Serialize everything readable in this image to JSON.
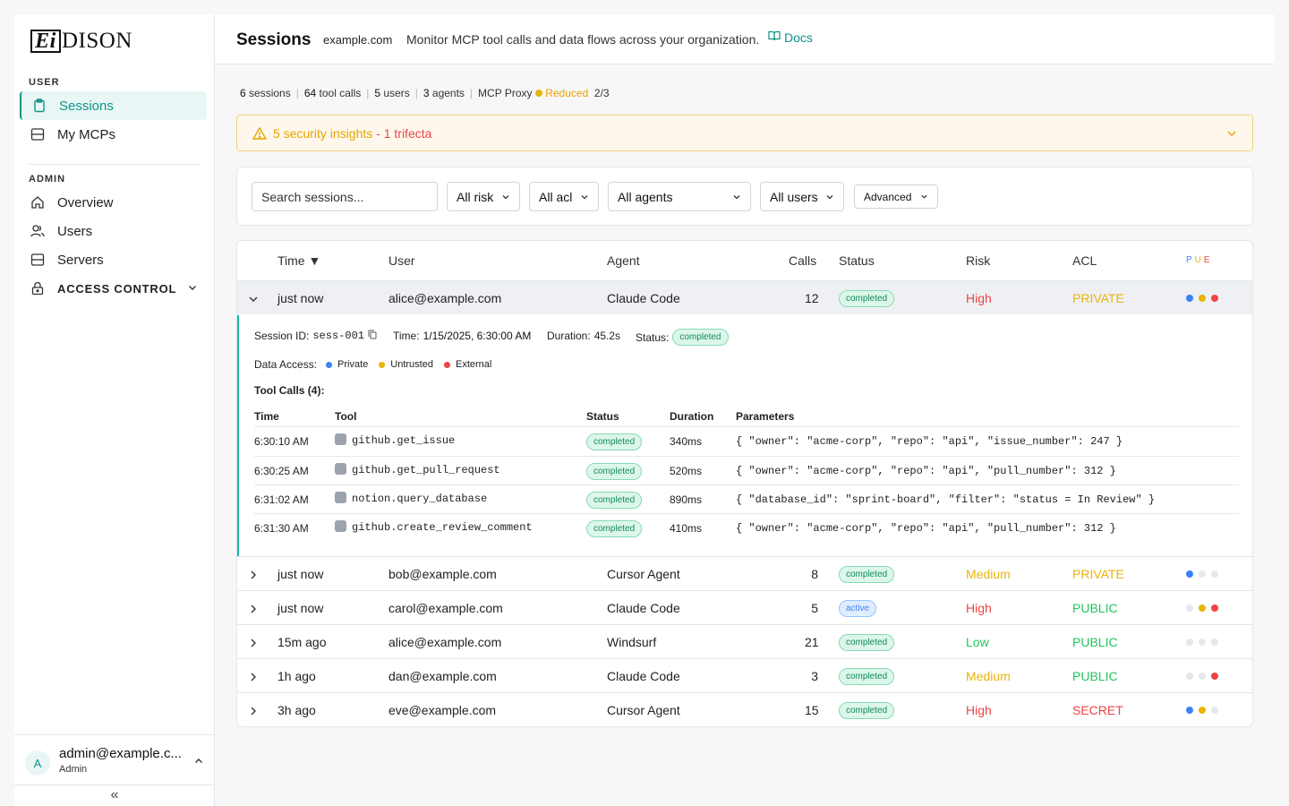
{
  "sidebar": {
    "logo_box": "Ei",
    "logo_rest": "DISON",
    "user_section": "USER",
    "admin_section": "ADMIN",
    "items": [
      {
        "label": "Sessions"
      },
      {
        "label": "My MCPs"
      },
      {
        "label": "Overview"
      },
      {
        "label": "Users"
      },
      {
        "label": "Servers"
      },
      {
        "label": "ACCESS CONTROL"
      }
    ],
    "account": {
      "avatar": "A",
      "email": "admin@example.c...",
      "role": "Admin"
    },
    "collapse_label": "«"
  },
  "header": {
    "title": "Sessions",
    "org": "example.com",
    "subtitle": "Monitor MCP tool calls and data flows across your organization.",
    "docs": "Docs"
  },
  "stats": {
    "sessions_n": "6",
    "sessions_l": "sessions",
    "calls_n": "64",
    "calls_l": "tool calls",
    "users_n": "5",
    "users_l": "users",
    "agents_n": "3",
    "agents_l": "agents",
    "proxy": "MCP Proxy",
    "reduced": "Reduced",
    "ratio": "2/3"
  },
  "alert": {
    "text": "5 security insights",
    "trifecta": " - 1 trifecta"
  },
  "filters": {
    "search_placeholder": "Search sessions...",
    "risk": "All risk",
    "acl": "All acl",
    "agents": "All agents",
    "users": "All users",
    "advanced": "Advanced"
  },
  "table": {
    "headers": {
      "time": "Time ▼",
      "user": "User",
      "agent": "Agent",
      "calls": "Calls",
      "status": "Status",
      "risk": "Risk",
      "acl": "ACL",
      "pue_p": "P",
      "pue_u": "U",
      "pue_e": "E"
    },
    "rows": [
      {
        "time": "just now",
        "user": "alice@example.com",
        "agent": "Claude Code",
        "calls": "12",
        "status": "completed",
        "risk": "High",
        "acl": "PRIVATE"
      },
      {
        "time": "just now",
        "user": "bob@example.com",
        "agent": "Cursor Agent",
        "calls": "8",
        "status": "completed",
        "risk": "Medium",
        "acl": "PRIVATE"
      },
      {
        "time": "just now",
        "user": "carol@example.com",
        "agent": "Claude Code",
        "calls": "5",
        "status": "active",
        "risk": "High",
        "acl": "PUBLIC"
      },
      {
        "time": "15m ago",
        "user": "alice@example.com",
        "agent": "Windsurf",
        "calls": "21",
        "status": "completed",
        "risk": "Low",
        "acl": "PUBLIC"
      },
      {
        "time": "1h ago",
        "user": "dan@example.com",
        "agent": "Claude Code",
        "calls": "3",
        "status": "completed",
        "risk": "Medium",
        "acl": "PUBLIC"
      },
      {
        "time": "3h ago",
        "user": "eve@example.com",
        "agent": "Cursor Agent",
        "calls": "15",
        "status": "completed",
        "risk": "High",
        "acl": "SECRET"
      }
    ],
    "colors": {
      "High": "#ef4444",
      "Medium": "#eab308",
      "Low": "#22c55e",
      "PRIVATE": "#eab308",
      "PUBLIC": "#22c55e",
      "SECRET": "#ef4444",
      "private_dot": "#3b82f6",
      "untrusted_dot": "#eab308",
      "external_dot": "#ef4444",
      "off_dot": "#e5e7eb"
    }
  },
  "detail": {
    "session_id_label": "Session ID:",
    "session_id": "sess-001",
    "time_label": "Time:",
    "time": "1/15/2025, 6:30:00 AM",
    "duration_label": "Duration:",
    "duration": "45.2s",
    "status_label": "Status:",
    "status": "completed",
    "data_access_label": "Data Access:",
    "legend": [
      "Private",
      "Untrusted",
      "External"
    ],
    "tool_calls_title": "Tool Calls (4):",
    "sub_headers": {
      "time": "Time",
      "tool": "Tool",
      "status": "Status",
      "duration": "Duration",
      "params": "Parameters"
    },
    "calls": [
      {
        "time": "6:30:10 AM",
        "tool": "github.get_issue",
        "status": "completed",
        "duration": "340ms",
        "params": "{ \"owner\": \"acme-corp\", \"repo\": \"api\", \"issue_number\": 247 }"
      },
      {
        "time": "6:30:25 AM",
        "tool": "github.get_pull_request",
        "status": "completed",
        "duration": "520ms",
        "params": "{ \"owner\": \"acme-corp\", \"repo\": \"api\", \"pull_number\": 312 }"
      },
      {
        "time": "6:31:02 AM",
        "tool": "notion.query_database",
        "status": "completed",
        "duration": "890ms",
        "params": "{ \"database_id\": \"sprint-board\", \"filter\": \"status = In Review\" }"
      },
      {
        "time": "6:31:30 AM",
        "tool": "github.create_review_comment",
        "status": "completed",
        "duration": "410ms",
        "params": "{ \"owner\": \"acme-corp\", \"repo\": \"api\", \"pull_number\": 312 }"
      }
    ]
  }
}
